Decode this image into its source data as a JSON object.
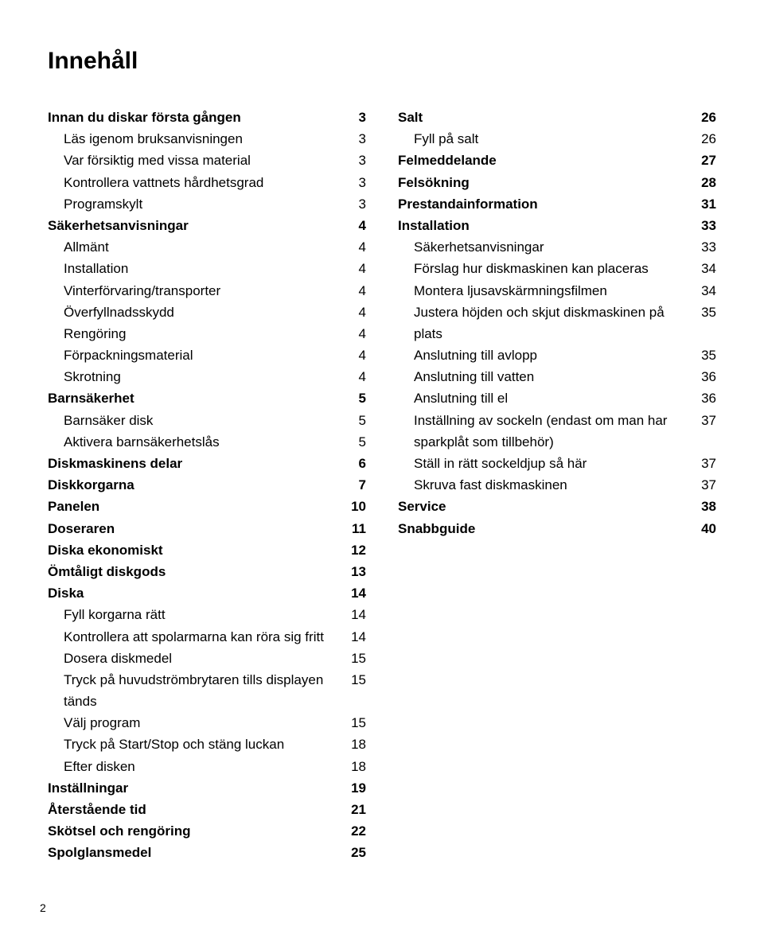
{
  "title": "Innehåll",
  "pageNumber": "2",
  "leftColumn": [
    {
      "label": "Innan du diskar första gången",
      "page": "3",
      "indent": 0,
      "bold": true
    },
    {
      "label": "Läs igenom bruksanvisningen",
      "page": "3",
      "indent": 1,
      "bold": false
    },
    {
      "label": "Var försiktig med vissa material",
      "page": "3",
      "indent": 1,
      "bold": false
    },
    {
      "label": "Kontrollera vattnets hårdhetsgrad",
      "page": "3",
      "indent": 1,
      "bold": false
    },
    {
      "label": "Programskylt",
      "page": "3",
      "indent": 1,
      "bold": false
    },
    {
      "label": "Säkerhetsanvisningar",
      "page": "4",
      "indent": 0,
      "bold": true
    },
    {
      "label": "Allmänt",
      "page": "4",
      "indent": 1,
      "bold": false
    },
    {
      "label": "Installation",
      "page": "4",
      "indent": 1,
      "bold": false
    },
    {
      "label": "Vinterförvaring/transporter",
      "page": "4",
      "indent": 1,
      "bold": false
    },
    {
      "label": "Överfyllnadsskydd",
      "page": "4",
      "indent": 1,
      "bold": false
    },
    {
      "label": "Rengöring",
      "page": "4",
      "indent": 1,
      "bold": false
    },
    {
      "label": "Förpackningsmaterial",
      "page": "4",
      "indent": 1,
      "bold": false
    },
    {
      "label": "Skrotning",
      "page": "4",
      "indent": 1,
      "bold": false
    },
    {
      "label": "Barnsäkerhet",
      "page": "5",
      "indent": 0,
      "bold": true
    },
    {
      "label": "Barnsäker disk",
      "page": "5",
      "indent": 1,
      "bold": false
    },
    {
      "label": "Aktivera barnsäkerhetslås",
      "page": "5",
      "indent": 1,
      "bold": false
    },
    {
      "label": "Diskmaskinens delar",
      "page": "6",
      "indent": 0,
      "bold": true
    },
    {
      "label": "Diskkorgarna",
      "page": "7",
      "indent": 0,
      "bold": true
    },
    {
      "label": "Panelen",
      "page": "10",
      "indent": 0,
      "bold": true
    },
    {
      "label": "Doseraren",
      "page": "11",
      "indent": 0,
      "bold": true
    },
    {
      "label": "Diska ekonomiskt",
      "page": "12",
      "indent": 0,
      "bold": true
    },
    {
      "label": "Ömtåligt diskgods",
      "page": "13",
      "indent": 0,
      "bold": true
    },
    {
      "label": "Diska",
      "page": "14",
      "indent": 0,
      "bold": true
    },
    {
      "label": "Fyll korgarna rätt",
      "page": "14",
      "indent": 1,
      "bold": false
    },
    {
      "label": "Kontrollera att spolarmarna kan röra sig fritt",
      "page": "14",
      "indent": 1,
      "bold": false
    },
    {
      "label": "Dosera diskmedel",
      "page": "15",
      "indent": 1,
      "bold": false
    },
    {
      "label": "Tryck på huvudströmbrytaren tills displayen tänds",
      "page": "15",
      "indent": 1,
      "bold": false
    },
    {
      "label": "Välj program",
      "page": "15",
      "indent": 1,
      "bold": false
    },
    {
      "label": "Tryck på Start/Stop och stäng luckan",
      "page": "18",
      "indent": 1,
      "bold": false
    },
    {
      "label": "Efter disken",
      "page": "18",
      "indent": 1,
      "bold": false
    },
    {
      "label": "Inställningar",
      "page": "19",
      "indent": 0,
      "bold": true
    },
    {
      "label": "Återstående tid",
      "page": "21",
      "indent": 0,
      "bold": true
    },
    {
      "label": "Skötsel och rengöring",
      "page": "22",
      "indent": 0,
      "bold": true
    },
    {
      "label": "Spolglansmedel",
      "page": "25",
      "indent": 0,
      "bold": true
    }
  ],
  "rightColumn": [
    {
      "label": "Salt",
      "page": "26",
      "indent": 0,
      "bold": true
    },
    {
      "label": "Fyll på salt",
      "page": "26",
      "indent": 1,
      "bold": false
    },
    {
      "label": "Felmeddelande",
      "page": "27",
      "indent": 0,
      "bold": true
    },
    {
      "label": "Felsökning",
      "page": "28",
      "indent": 0,
      "bold": true
    },
    {
      "label": "Prestandainformation",
      "page": "31",
      "indent": 0,
      "bold": true
    },
    {
      "label": "Installation",
      "page": "33",
      "indent": 0,
      "bold": true
    },
    {
      "label": "Säkerhetsanvisningar",
      "page": "33",
      "indent": 1,
      "bold": false
    },
    {
      "label": "Förslag hur diskmaskinen kan placeras",
      "page": "34",
      "indent": 1,
      "bold": false
    },
    {
      "label": "Montera ljusavskärmningsfilmen",
      "page": "34",
      "indent": 1,
      "bold": false
    },
    {
      "label": "Justera höjden och skjut diskmaskinen på plats",
      "page": "35",
      "indent": 1,
      "bold": false
    },
    {
      "label": "Anslutning till avlopp",
      "page": "35",
      "indent": 1,
      "bold": false
    },
    {
      "label": "Anslutning till vatten",
      "page": "36",
      "indent": 1,
      "bold": false
    },
    {
      "label": "Anslutning till el",
      "page": "36",
      "indent": 1,
      "bold": false
    },
    {
      "label": "Inställning av sockeln (endast om man har sparkplåt som tillbehör)",
      "page": "37",
      "indent": 1,
      "bold": false
    },
    {
      "label": "Ställ in rätt sockeldjup så här",
      "page": "37",
      "indent": 1,
      "bold": false
    },
    {
      "label": "Skruva fast diskmaskinen",
      "page": "37",
      "indent": 1,
      "bold": false
    },
    {
      "label": "Service",
      "page": "38",
      "indent": 0,
      "bold": true
    },
    {
      "label": "Snabbguide",
      "page": "40",
      "indent": 0,
      "bold": true
    }
  ]
}
